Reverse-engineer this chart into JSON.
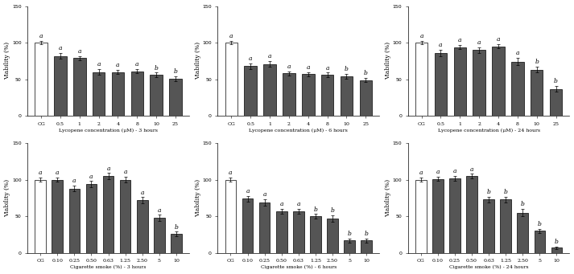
{
  "panels": [
    {
      "xlabel": "Lycopene concentration (μM) - 3 hours",
      "ylabel": "Viability (%)",
      "categories": [
        "CG",
        "0.5",
        "1",
        "2",
        "4",
        "8",
        "10",
        "25"
      ],
      "values": [
        100,
        82,
        79,
        60,
        60,
        61,
        56,
        51
      ],
      "errors": [
        2,
        4,
        3,
        4,
        3,
        3,
        3,
        3
      ],
      "letters": [
        "a",
        "a",
        "a",
        "a",
        "a",
        "a",
        "b",
        "b"
      ],
      "bar_colors": [
        "white",
        "#555555",
        "#555555",
        "#555555",
        "#555555",
        "#555555",
        "#555555",
        "#555555"
      ]
    },
    {
      "xlabel": "Lycopene concentration (μM) - 6 hours",
      "ylabel": "Viability (%)",
      "categories": [
        "CG",
        "0.5",
        "1",
        "2",
        "4",
        "8",
        "10",
        "25"
      ],
      "values": [
        100,
        68,
        71,
        58,
        57,
        56,
        54,
        49
      ],
      "errors": [
        2,
        4,
        4,
        3,
        3,
        3,
        3,
        3
      ],
      "letters": [
        "a",
        "a",
        "a",
        "a",
        "a",
        "a",
        "b",
        "b"
      ],
      "bar_colors": [
        "white",
        "#555555",
        "#555555",
        "#555555",
        "#555555",
        "#555555",
        "#555555",
        "#555555"
      ]
    },
    {
      "xlabel": "Lycopene concentration (μM) - 24 hours",
      "ylabel": "Viability (%)",
      "categories": [
        "CG",
        "0.5",
        "1",
        "2",
        "4",
        "8",
        "10",
        "25"
      ],
      "values": [
        100,
        86,
        94,
        90,
        95,
        74,
        63,
        37
      ],
      "errors": [
        2,
        4,
        3,
        4,
        3,
        5,
        4,
        4
      ],
      "letters": [
        "a",
        "a",
        "a",
        "a",
        "a",
        "a",
        "b",
        "b"
      ],
      "bar_colors": [
        "white",
        "#555555",
        "#555555",
        "#555555",
        "#555555",
        "#555555",
        "#555555",
        "#555555"
      ]
    },
    {
      "xlabel": "Cigarette smoke (%) - 3 hours",
      "ylabel": "Viability (%)",
      "categories": [
        "CG",
        "0.10",
        "0.25",
        "0.50",
        "0.63",
        "1.25",
        "2.50",
        "5",
        "10"
      ],
      "values": [
        100,
        100,
        88,
        94,
        105,
        100,
        72,
        48,
        26
      ],
      "errors": [
        3,
        3,
        4,
        4,
        4,
        4,
        4,
        4,
        3
      ],
      "letters": [
        "a",
        "a",
        "a",
        "a",
        "a",
        "a",
        "a",
        "a",
        "b"
      ],
      "bar_colors": [
        "white",
        "#555555",
        "#555555",
        "#555555",
        "#555555",
        "#555555",
        "#555555",
        "#555555",
        "#555555"
      ]
    },
    {
      "xlabel": "Cigarette smoke (%) - 6 hours",
      "ylabel": "Viability (%)",
      "categories": [
        "CG",
        "0.10",
        "0.25",
        "0.50",
        "0.63",
        "1.25",
        "2.50",
        "5",
        "10"
      ],
      "values": [
        100,
        74,
        69,
        57,
        57,
        50,
        47,
        17,
        17
      ],
      "errors": [
        3,
        4,
        4,
        3,
        3,
        3,
        4,
        3,
        3
      ],
      "letters": [
        "a",
        "a",
        "a",
        "a",
        "a",
        "b",
        "b",
        "b",
        "b"
      ],
      "bar_colors": [
        "white",
        "#555555",
        "#555555",
        "#555555",
        "#555555",
        "#555555",
        "#555555",
        "#555555",
        "#555555"
      ]
    },
    {
      "xlabel": "Cigarette smoke (%) - 24 hours",
      "ylabel": "Viability (%)",
      "categories": [
        "CG",
        "0.10",
        "0.25",
        "0.50",
        "0.63",
        "1.25",
        "2.50",
        "5",
        "10"
      ],
      "values": [
        100,
        101,
        102,
        105,
        73,
        73,
        55,
        30,
        7
      ],
      "errors": [
        3,
        3,
        3,
        3,
        4,
        4,
        5,
        3,
        2
      ],
      "letters": [
        "a",
        "a",
        "a",
        "a",
        "b",
        "b",
        "b",
        "b",
        "b"
      ],
      "bar_colors": [
        "white",
        "#555555",
        "#555555",
        "#555555",
        "#555555",
        "#555555",
        "#555555",
        "#555555",
        "#555555"
      ]
    }
  ],
  "ylim": [
    0,
    150
  ],
  "yticks": [
    0,
    50,
    100,
    150
  ],
  "background_color": "#ffffff",
  "bar_width": 0.65,
  "fontsize_xlabel": 4.5,
  "fontsize_ticks": 4.5,
  "fontsize_letters": 5.5,
  "fontsize_ylabel": 5.5
}
